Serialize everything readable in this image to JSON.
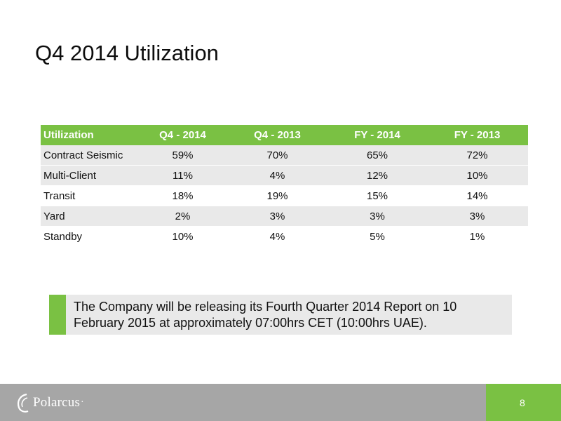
{
  "slide": {
    "title": "Q4 2014 Utilization"
  },
  "table": {
    "headers": [
      "Utilization",
      "Q4 - 2014",
      "Q4 - 2013",
      "FY - 2014",
      "FY - 2013"
    ],
    "rows": [
      [
        "Contract Seismic",
        "59%",
        "70%",
        "65%",
        "72%"
      ],
      [
        "Multi-Client",
        "11%",
        "4%",
        "12%",
        "10%"
      ],
      [
        "Transit",
        "18%",
        "19%",
        "15%",
        "14%"
      ],
      [
        "Yard",
        "2%",
        "3%",
        "3%",
        "3%"
      ],
      [
        "Standby",
        "10%",
        "4%",
        "5%",
        "1%"
      ]
    ]
  },
  "note": {
    "text": "The Company will be releasing its Fourth Quarter 2014 Report on 10 February 2015 at approximately 07:00hrs CET (10:00hrs UAE)."
  },
  "footer": {
    "logo_text": "Polarcus",
    "logo_mark": "·",
    "page_number": "8"
  },
  "colors": {
    "accent_green": "#7ac143",
    "footer_gray": "#a6a6a6",
    "row_gray": "#e9e9e9"
  }
}
